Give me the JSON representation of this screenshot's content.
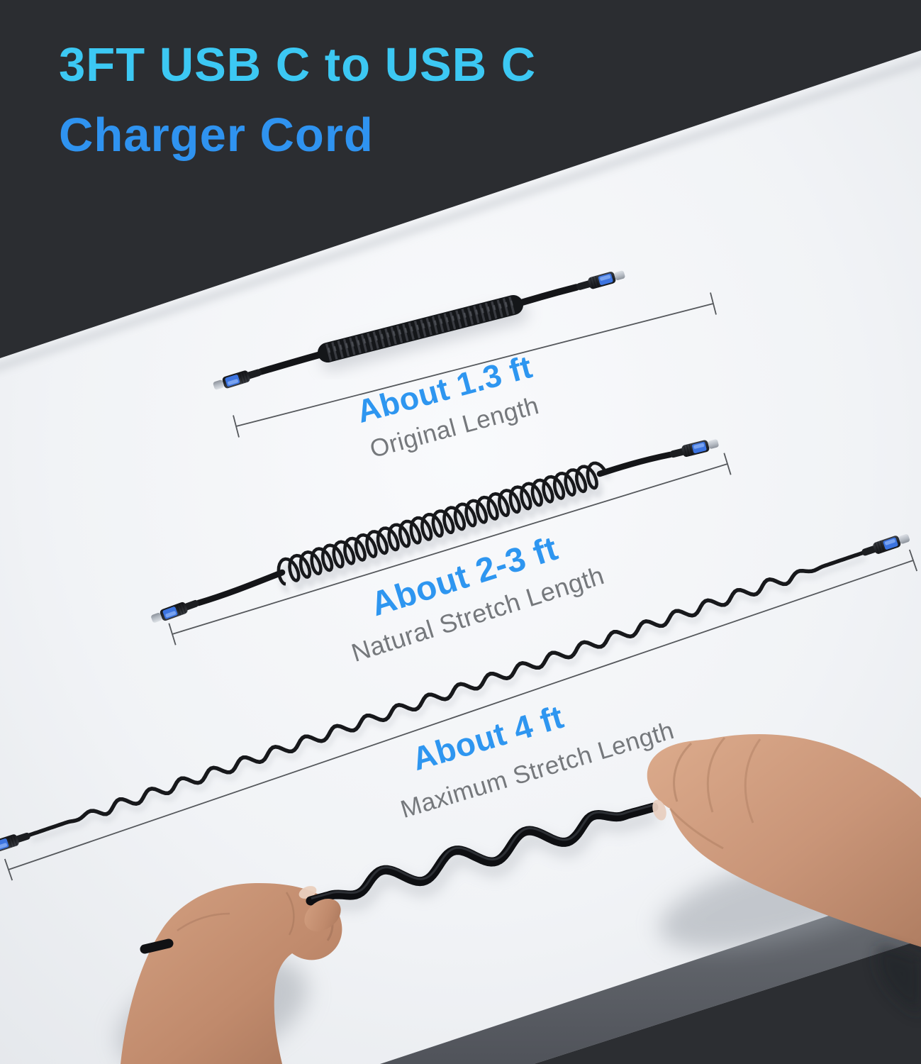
{
  "header": {
    "title_line1": "3FT USB C to USB C",
    "title_line2": "Charger Cord"
  },
  "measurements": [
    {
      "length": "About 1.3 ft",
      "label": "Original Length"
    },
    {
      "length": "About 2-3 ft",
      "label": "Natural Stretch Length"
    },
    {
      "length": "About 4 ft",
      "label": "Maximum Stretch Length"
    }
  ],
  "colors": {
    "accent_blue": "#2E96F0",
    "title_cyan": "#3CC8F3",
    "title_blue": "#2F93F0",
    "label_gray": "#75787C",
    "background_dark": "#2B2D31",
    "surface_white": "#F2F4F6",
    "cable_black": "#17181B",
    "measure_line_gray": "#55585C",
    "connector_blue": "#3C74E0",
    "metal_silver": "#C9CDD3",
    "table_edge_gray": "#5A5E63",
    "skin_tone": "#C9957A"
  }
}
